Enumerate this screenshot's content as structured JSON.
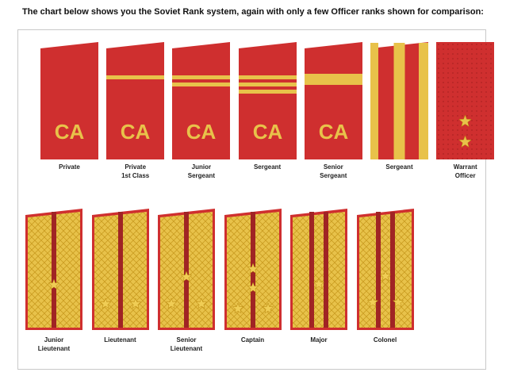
{
  "caption": "The chart below shows you the Soviet Rank system, again with only a few Officer ranks shown for comparison:",
  "colors": {
    "red": "#cf2f2f",
    "gold": "#e8c24a",
    "gold_dark": "#c99b1f",
    "dark_red": "#a02424"
  },
  "badge_text": "CA",
  "enlisted": [
    {
      "line1": "Private",
      "line2": "",
      "type": "plain",
      "stripes": 0,
      "badge": true
    },
    {
      "line1": "Private",
      "line2": "1st Class",
      "type": "stripes",
      "stripes": 1,
      "badge": true
    },
    {
      "line1": "Junior",
      "line2": "Sergeant",
      "type": "stripes",
      "stripes": 2,
      "badge": true
    },
    {
      "line1": "Sergeant",
      "line2": "",
      "type": "stripes",
      "stripes": 3,
      "badge": true
    },
    {
      "line1": "Senior",
      "line2": "Sergeant",
      "type": "wide",
      "stripes": 1,
      "badge": true
    },
    {
      "line1": "Sergeant",
      "line2": "",
      "type": "long",
      "stripes": 0,
      "badge": false
    },
    {
      "line1": "Warrant",
      "line2": "Officer",
      "type": "warrant",
      "stars": 2,
      "badge": false
    }
  ],
  "officers": [
    {
      "line1": "Junior",
      "line2": "Lieutenant",
      "stripes": 1,
      "stars": 1
    },
    {
      "line1": "Lieutenant",
      "line2": "",
      "stripes": 1,
      "stars": 2
    },
    {
      "line1": "Senior",
      "line2": "Lieutenant",
      "stripes": 1,
      "stars": 3
    },
    {
      "line1": "Captain",
      "line2": "",
      "stripes": 1,
      "stars": 4
    },
    {
      "line1": "Major",
      "line2": "",
      "stripes": 2,
      "stars": 1
    },
    {
      "line1": "Colonel",
      "line2": "",
      "stripes": 2,
      "stars": 3
    }
  ]
}
